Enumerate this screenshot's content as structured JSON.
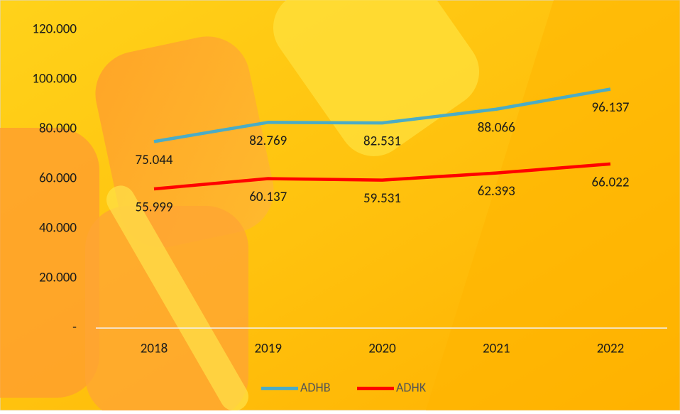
{
  "chart_data": {
    "type": "line",
    "categories": [
      "2018",
      "2019",
      "2020",
      "2021",
      "2022"
    ],
    "series": [
      {
        "name": "ADHB",
        "color": "#4bacc6",
        "values": [
          75044,
          82769,
          82531,
          88066,
          96137
        ],
        "value_labels": [
          "75.044",
          "82.769",
          "82.531",
          "88.066",
          "96.137"
        ]
      },
      {
        "name": "ADHK",
        "color": "#ff0000",
        "values": [
          55999,
          60137,
          59531,
          62393,
          66022
        ],
        "value_labels": [
          "55.999",
          "60.137",
          "59.531",
          "62.393",
          "66.022"
        ]
      }
    ],
    "ylim": [
      0,
      120000
    ],
    "yticks": [
      {
        "value": 0,
        "label": "-"
      },
      {
        "value": 20000,
        "label": "20.000"
      },
      {
        "value": 40000,
        "label": "40.000"
      },
      {
        "value": 60000,
        "label": "60.000"
      },
      {
        "value": 80000,
        "label": "80.000"
      },
      {
        "value": 100000,
        "label": "100.000"
      },
      {
        "value": 120000,
        "label": "120.000"
      }
    ],
    "legend": "bottom"
  }
}
